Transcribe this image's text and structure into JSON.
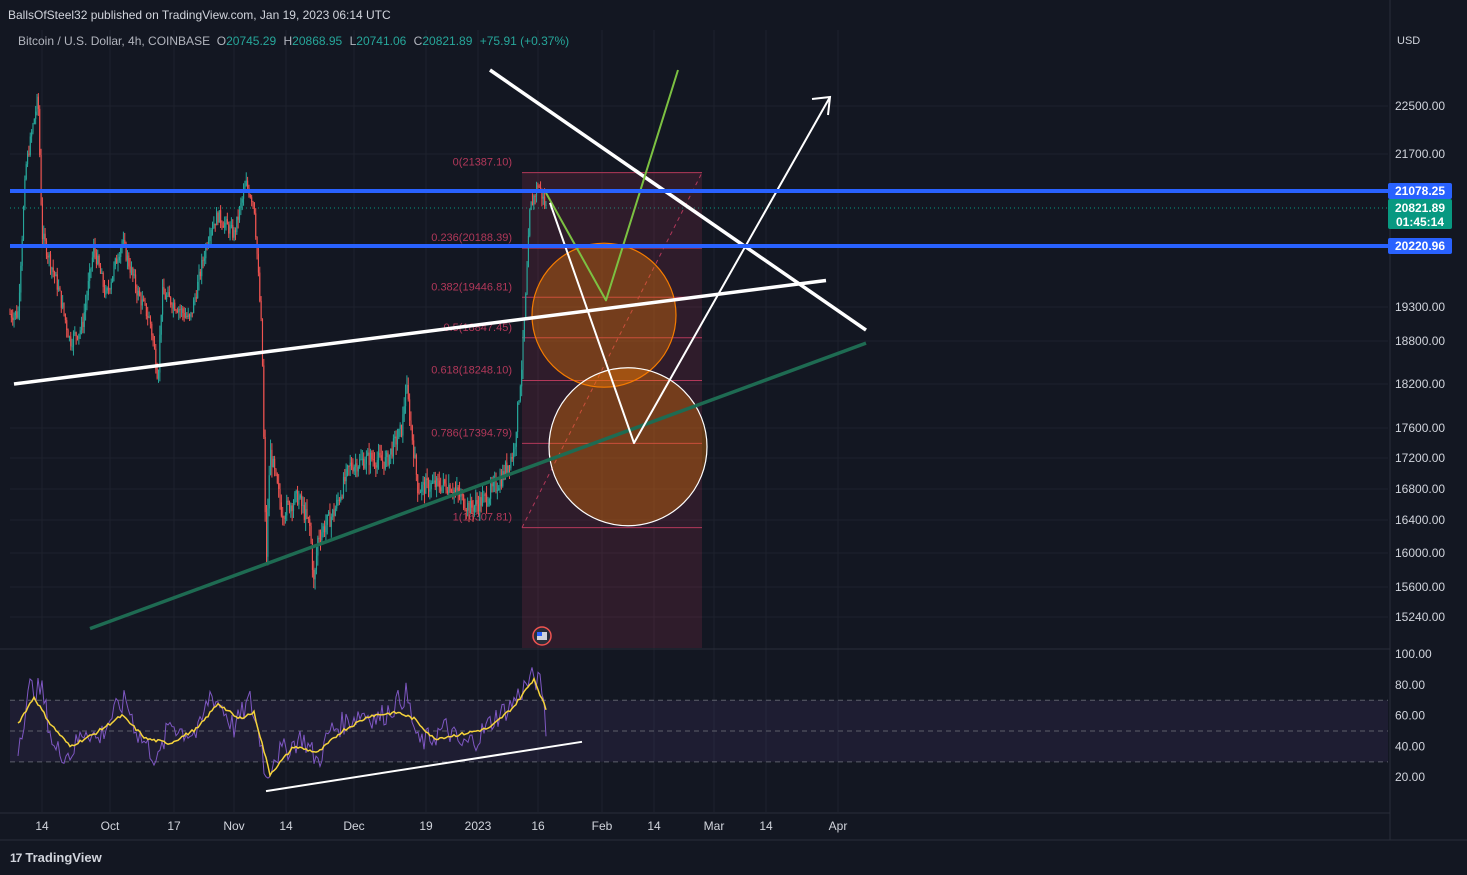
{
  "publisher_line": "BallsOfSteel32 published on TradingView.com, Jan 19, 2023 06:14 UTC",
  "symbol": "Bitcoin / U.S. Dollar, 4h, COINBASE",
  "ohlc": {
    "o_label": "O",
    "o": "20745.29",
    "h_label": "H",
    "h": "20868.95",
    "l_label": "L",
    "l": "20741.06",
    "c_label": "C",
    "c": "20821.89",
    "change": "+75.91 (+0.37%)"
  },
  "currency": "USD",
  "footer_brand": "TradingView",
  "footer_logo": "17",
  "colors": {
    "bg": "#131722",
    "up": "#26a69a",
    "down": "#ef5350",
    "blue": "#2962ff",
    "grid": "#1e222d",
    "rsi": "#7e57c2",
    "rsi_ma": "#f5d33b",
    "fib": "#b2385a"
  },
  "chart_data": [
    {
      "type": "candlestick",
      "ylim": [
        15000,
        23000
      ],
      "y_ticks": [
        "22500.00",
        "21700.00",
        "19300.00",
        "18800.00",
        "18200.00",
        "17600.00",
        "17200.00",
        "16800.00",
        "16400.00",
        "16000.00",
        "15600.00",
        "15240.00"
      ],
      "y_tick_values": [
        22500,
        21700,
        19300,
        18800,
        18200,
        17600,
        17200,
        16800,
        16400,
        16000,
        15600,
        15240
      ],
      "x_ticks": [
        "14",
        "Oct",
        "17",
        "Nov",
        "14",
        "Dec",
        "19",
        "2023",
        "16",
        "Feb",
        "14",
        "Mar",
        "14",
        "Apr"
      ],
      "x_tick_dates": [
        "2022-09-14",
        "2022-10-01",
        "2022-10-17",
        "2022-11-01",
        "2022-11-14",
        "2022-12-01",
        "2022-12-19",
        "2023-01-01",
        "2023-01-16",
        "2023-02-01",
        "2023-02-14",
        "2023-03-01",
        "2023-03-14",
        "2023-04-01"
      ],
      "price_path": [
        [
          "2022-09-08",
          19200
        ],
        [
          "2022-09-10",
          21500
        ],
        [
          "2022-09-13",
          22650
        ],
        [
          "2022-09-14",
          20400
        ],
        [
          "2022-09-18",
          19600
        ],
        [
          "2022-09-21",
          18800
        ],
        [
          "2022-09-24",
          19000
        ],
        [
          "2022-09-27",
          20200
        ],
        [
          "2022-09-30",
          19450
        ],
        [
          "2022-10-04",
          20300
        ],
        [
          "2022-10-08",
          19500
        ],
        [
          "2022-10-11",
          19100
        ],
        [
          "2022-10-13",
          18300
        ],
        [
          "2022-10-14",
          19500
        ],
        [
          "2022-10-18",
          19300
        ],
        [
          "2022-10-21",
          19100
        ],
        [
          "2022-10-26",
          20500
        ],
        [
          "2022-10-28",
          20700
        ],
        [
          "2022-11-01",
          20400
        ],
        [
          "2022-11-04",
          21200
        ],
        [
          "2022-11-06",
          20900
        ],
        [
          "2022-11-08",
          18800
        ],
        [
          "2022-11-09",
          15800
        ],
        [
          "2022-11-10",
          17300
        ],
        [
          "2022-11-13",
          16500
        ],
        [
          "2022-11-17",
          16700
        ],
        [
          "2022-11-20",
          16300
        ],
        [
          "2022-11-21",
          15600
        ],
        [
          "2022-11-22",
          16200
        ],
        [
          "2022-11-26",
          16500
        ],
        [
          "2022-11-30",
          17100
        ],
        [
          "2022-12-05",
          17200
        ],
        [
          "2022-12-09",
          17150
        ],
        [
          "2022-12-13",
          17600
        ],
        [
          "2022-12-14",
          18200
        ],
        [
          "2022-12-17",
          16800
        ],
        [
          "2022-12-20",
          16850
        ],
        [
          "2022-12-25",
          16850
        ],
        [
          "2022-12-30",
          16550
        ],
        [
          "2023-01-03",
          16680
        ],
        [
          "2023-01-07",
          16950
        ],
        [
          "2023-01-10",
          17300
        ],
        [
          "2023-01-12",
          18500
        ],
        [
          "2023-01-13",
          19500
        ],
        [
          "2023-01-14",
          20800
        ],
        [
          "2023-01-16",
          21200
        ],
        [
          "2023-01-18",
          20821.89
        ]
      ],
      "horizontal_levels": [
        {
          "price": 21078.25,
          "label": "21078.25",
          "color": "#2962ff"
        },
        {
          "price": 20220.96,
          "label": "20220.96",
          "color": "#2962ff"
        }
      ],
      "last_price": {
        "price": 20821.89,
        "label": "20821.89",
        "countdown": "01:45:14",
        "color": "#089981"
      },
      "fibonacci": {
        "levels": [
          {
            "ratio": "0",
            "price": 21387.1,
            "label": "0(21387.10)"
          },
          {
            "ratio": "0.236",
            "price": 20188.39,
            "label": "0.236(20188.39)"
          },
          {
            "ratio": "0.382",
            "price": 19446.81,
            "label": "0.382(19446.81)"
          },
          {
            "ratio": "0.5",
            "price": 18847.45,
            "label": "0.5(18847.45)"
          },
          {
            "ratio": "0.618",
            "price": 18248.1,
            "label": "0.618(18248.10)"
          },
          {
            "ratio": "0.786",
            "price": 17394.79,
            "label": "0.786(17394.79)"
          },
          {
            "ratio": "1",
            "price": 16307.81,
            "label": "1(16307.81)"
          }
        ],
        "start_date": "2023-01-12",
        "end_date": "2023-02-26"
      },
      "trendlines": [
        {
          "name": "upper-descending",
          "color": "#ffffff",
          "points": [
            [
              "2023-01-04",
              23100
            ],
            [
              "2023-04-08",
              18960
            ]
          ]
        },
        {
          "name": "rising-support-white",
          "color": "#ffffff",
          "points": [
            [
              "2022-09-07",
              18200
            ],
            [
              "2023-03-29",
              19700
            ]
          ]
        },
        {
          "name": "rising-support-green",
          "color": "#1e6b52",
          "points": [
            [
              "2022-09-26",
              15100
            ],
            [
              "2023-04-08",
              18770
            ]
          ]
        },
        {
          "name": "projection-green",
          "color": "#7cc142",
          "points": [
            [
              "2023-01-18",
              21050
            ],
            [
              "2023-02-02",
              19400
            ],
            [
              "2023-02-20",
              23100
            ]
          ]
        },
        {
          "name": "projection-white",
          "color": "#ffffff",
          "points": [
            [
              "2023-01-19",
              20900
            ],
            [
              "2023-02-09",
              17400
            ],
            [
              "2023-03-30",
              22650
            ]
          ]
        }
      ],
      "zones": [
        {
          "name": "orange-circle",
          "center_date": "2023-02-01",
          "center_price": 19150,
          "color": "#f57c00"
        },
        {
          "name": "white-circle",
          "center_date": "2023-02-06",
          "center_price": 17350,
          "color": "#ffffff"
        }
      ]
    },
    {
      "type": "line",
      "name": "RSI",
      "ylim": [
        0,
        100
      ],
      "y_ticks": [
        "100.00",
        "80.00",
        "60.00",
        "40.00",
        "20.00"
      ],
      "y_tick_values": [
        100,
        80,
        60,
        40,
        20
      ],
      "bands": [
        70,
        50,
        30
      ],
      "rsi_path": [
        [
          "2022-09-08",
          40
        ],
        [
          "2022-09-11",
          78
        ],
        [
          "2022-09-14",
          76
        ],
        [
          "2022-09-17",
          38
        ],
        [
          "2022-09-21",
          35
        ],
        [
          "2022-09-25",
          52
        ],
        [
          "2022-09-28",
          44
        ],
        [
          "2022-10-02",
          62
        ],
        [
          "2022-10-05",
          70
        ],
        [
          "2022-10-08",
          48
        ],
        [
          "2022-10-11",
          38
        ],
        [
          "2022-10-13",
          30
        ],
        [
          "2022-10-16",
          56
        ],
        [
          "2022-10-19",
          50
        ],
        [
          "2022-10-23",
          48
        ],
        [
          "2022-10-26",
          74
        ],
        [
          "2022-10-29",
          66
        ],
        [
          "2022-11-01",
          52
        ],
        [
          "2022-11-05",
          70
        ],
        [
          "2022-11-08",
          40
        ],
        [
          "2022-11-09",
          18
        ],
        [
          "2022-11-11",
          34
        ],
        [
          "2022-11-14",
          38
        ],
        [
          "2022-11-18",
          46
        ],
        [
          "2022-11-22",
          30
        ],
        [
          "2022-11-25",
          50
        ],
        [
          "2022-11-29",
          56
        ],
        [
          "2022-12-03",
          62
        ],
        [
          "2022-12-07",
          58
        ],
        [
          "2022-12-10",
          64
        ],
        [
          "2022-12-14",
          74
        ],
        [
          "2022-12-17",
          42
        ],
        [
          "2022-12-20",
          45
        ],
        [
          "2022-12-24",
          52
        ],
        [
          "2022-12-28",
          40
        ],
        [
          "2023-01-01",
          46
        ],
        [
          "2023-01-05",
          58
        ],
        [
          "2023-01-09",
          66
        ],
        [
          "2023-01-13",
          80
        ],
        [
          "2023-01-15",
          85
        ],
        [
          "2023-01-17",
          78
        ],
        [
          "2023-01-18",
          52
        ]
      ],
      "rsi_ma_path": [
        [
          "2022-09-08",
          55
        ],
        [
          "2022-09-12",
          72
        ],
        [
          "2022-09-16",
          55
        ],
        [
          "2022-09-21",
          40
        ],
        [
          "2022-09-27",
          48
        ],
        [
          "2022-10-04",
          60
        ],
        [
          "2022-10-10",
          45
        ],
        [
          "2022-10-16",
          42
        ],
        [
          "2022-10-23",
          52
        ],
        [
          "2022-10-28",
          68
        ],
        [
          "2022-11-02",
          58
        ],
        [
          "2022-11-06",
          62
        ],
        [
          "2022-11-10",
          22
        ],
        [
          "2022-11-16",
          40
        ],
        [
          "2022-11-22",
          36
        ],
        [
          "2022-11-28",
          50
        ],
        [
          "2022-12-05",
          60
        ],
        [
          "2022-12-12",
          62
        ],
        [
          "2022-12-16",
          58
        ],
        [
          "2022-12-21",
          45
        ],
        [
          "2022-12-28",
          48
        ],
        [
          "2023-01-04",
          52
        ],
        [
          "2023-01-10",
          66
        ],
        [
          "2023-01-15",
          84
        ],
        [
          "2023-01-18",
          64
        ]
      ],
      "divergence_line": {
        "color": "#ffffff",
        "points": [
          [
            "2022-11-09",
            11
          ],
          [
            "2023-01-27",
            43
          ]
        ]
      }
    }
  ]
}
